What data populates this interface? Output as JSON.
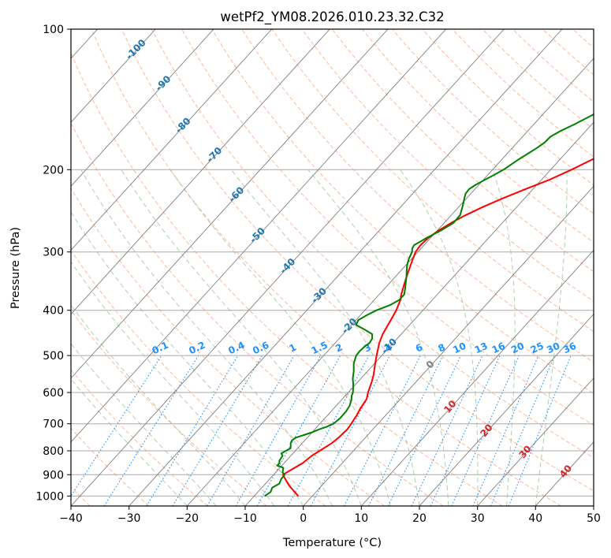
{
  "title": "wetPf2_YM08.2026.010.23.32.C32",
  "colors": {
    "temperature": "#ff0000",
    "dewpoint": "#008000",
    "grid": "#a9a9a9",
    "skew_isotherm": "#7f7f7f",
    "dry_adiabat": "#ffa07a",
    "moist_adiabat": "#8fbc8f",
    "mixing_ratio": "#1e90ff",
    "lifted_label": "#1f77b4",
    "wetbulb_label": "#d62728"
  },
  "chart_data": {
    "type": "line",
    "title": "wetPf2_YM08.2026.010.23.32.C32",
    "xlabel": "Temperature (°C)",
    "ylabel": "Pressure (hPa)",
    "xlim": [
      -40,
      50
    ],
    "ylim": [
      1050,
      100
    ],
    "y_scale": "log",
    "x_ticks": [
      -40,
      -30,
      -20,
      -10,
      0,
      10,
      20,
      30,
      40,
      50
    ],
    "x_tick_labels": [
      "−40",
      "−30",
      "−20",
      "−10",
      "0",
      "10",
      "20",
      "30",
      "40",
      "50"
    ],
    "y_ticks": [
      1000,
      900,
      800,
      700,
      600,
      500,
      400,
      300,
      200,
      100
    ],
    "y_tick_labels": [
      "1000",
      "900",
      "800",
      "700",
      "600",
      "500",
      "400",
      "300",
      "200",
      "100"
    ],
    "grid": true,
    "series": [
      {
        "key": "temperature",
        "points": [
          [
            1000,
            -2.4
          ],
          [
            975,
            -4.0
          ],
          [
            950,
            -5.6
          ],
          [
            925,
            -7.0
          ],
          [
            900,
            -8.4
          ],
          [
            880,
            -7.8
          ],
          [
            850,
            -6.8
          ],
          [
            820,
            -6.4
          ],
          [
            800,
            -5.8
          ],
          [
            770,
            -4.9
          ],
          [
            750,
            -4.6
          ],
          [
            720,
            -4.4
          ],
          [
            700,
            -4.6
          ],
          [
            670,
            -5.0
          ],
          [
            650,
            -5.4
          ],
          [
            620,
            -5.8
          ],
          [
            600,
            -6.6
          ],
          [
            570,
            -7.6
          ],
          [
            550,
            -8.4
          ],
          [
            520,
            -9.9
          ],
          [
            500,
            -10.9
          ],
          [
            470,
            -12.4
          ],
          [
            450,
            -13.2
          ],
          [
            420,
            -14.0
          ],
          [
            400,
            -14.6
          ],
          [
            380,
            -15.5
          ],
          [
            370,
            -16.2
          ],
          [
            350,
            -17.4
          ],
          [
            330,
            -18.6
          ],
          [
            310,
            -19.8
          ],
          [
            300,
            -20.4
          ],
          [
            290,
            -20.6
          ],
          [
            280,
            -20.4
          ],
          [
            270,
            -19.8
          ],
          [
            260,
            -18.8
          ],
          [
            250,
            -17.5
          ],
          [
            240,
            -15.8
          ],
          [
            230,
            -13.7
          ],
          [
            220,
            -11.3
          ],
          [
            210,
            -8.6
          ],
          [
            200,
            -6.4
          ],
          [
            190,
            -4.4
          ],
          [
            180,
            -2.2
          ],
          [
            175,
            -0.8
          ],
          [
            170,
            0.8
          ],
          [
            160,
            3.9
          ],
          [
            150,
            6.7
          ],
          [
            145,
            8.2
          ],
          [
            140,
            9.6
          ],
          [
            135,
            11.3
          ],
          [
            130,
            13.1
          ],
          [
            125,
            15.3
          ],
          [
            120,
            17.8
          ],
          [
            115,
            19.7
          ],
          [
            110,
            21.6
          ],
          [
            105,
            23.6
          ],
          [
            100,
            26.6
          ]
        ]
      },
      {
        "key": "dewpoint",
        "points": [
          [
            1000,
            -8.2
          ],
          [
            980,
            -7.8
          ],
          [
            960,
            -8.2
          ],
          [
            940,
            -7.6
          ],
          [
            920,
            -8.0
          ],
          [
            900,
            -8.1
          ],
          [
            890,
            -8.8
          ],
          [
            880,
            -9.1
          ],
          [
            870,
            -9.4
          ],
          [
            860,
            -10.8
          ],
          [
            850,
            -10.8
          ],
          [
            840,
            -11.2
          ],
          [
            820,
            -11.4
          ],
          [
            810,
            -12.0
          ],
          [
            790,
            -11.2
          ],
          [
            780,
            -11.6
          ],
          [
            770,
            -12.0
          ],
          [
            760,
            -12.2
          ],
          [
            750,
            -12.0
          ],
          [
            740,
            -11.0
          ],
          [
            730,
            -10.0
          ],
          [
            720,
            -9.3
          ],
          [
            710,
            -8.3
          ],
          [
            700,
            -7.7
          ],
          [
            690,
            -7.5
          ],
          [
            680,
            -7.4
          ],
          [
            660,
            -7.4
          ],
          [
            640,
            -7.7
          ],
          [
            620,
            -8.4
          ],
          [
            610,
            -8.9
          ],
          [
            600,
            -9.2
          ],
          [
            580,
            -10.2
          ],
          [
            560,
            -11.4
          ],
          [
            540,
            -12.4
          ],
          [
            520,
            -13.6
          ],
          [
            510,
            -14.0
          ],
          [
            500,
            -14.4
          ],
          [
            490,
            -14.5
          ],
          [
            480,
            -14.4
          ],
          [
            470,
            -14.1
          ],
          [
            460,
            -14.3
          ],
          [
            450,
            -15.0
          ],
          [
            440,
            -17.0
          ],
          [
            430,
            -19.2
          ],
          [
            420,
            -19.6
          ],
          [
            410,
            -18.9
          ],
          [
            400,
            -18.0
          ],
          [
            390,
            -16.5
          ],
          [
            380,
            -15.7
          ],
          [
            370,
            -15.7
          ],
          [
            360,
            -16.4
          ],
          [
            350,
            -17.2
          ],
          [
            340,
            -18.0
          ],
          [
            330,
            -18.9
          ],
          [
            320,
            -19.8
          ],
          [
            310,
            -20.5
          ],
          [
            300,
            -21.0
          ],
          [
            295,
            -21.5
          ],
          [
            290,
            -21.7
          ],
          [
            285,
            -21.2
          ],
          [
            280,
            -20.7
          ],
          [
            270,
            -19.4
          ],
          [
            260,
            -18.4
          ],
          [
            250,
            -18.5
          ],
          [
            240,
            -19.4
          ],
          [
            230,
            -20.4
          ],
          [
            225,
            -20.9
          ],
          [
            220,
            -21.0
          ],
          [
            215,
            -20.5
          ],
          [
            210,
            -19.7
          ],
          [
            205,
            -18.9
          ],
          [
            200,
            -18.1
          ],
          [
            190,
            -17.1
          ],
          [
            180,
            -15.8
          ],
          [
            175,
            -15.3
          ],
          [
            170,
            -15.2
          ],
          [
            165,
            -14.3
          ],
          [
            160,
            -13.0
          ],
          [
            150,
            -10.7
          ],
          [
            140,
            -8.1
          ],
          [
            130,
            -5.2
          ],
          [
            120,
            -2.1
          ],
          [
            110,
            1.2
          ],
          [
            100,
            4.4
          ]
        ]
      }
    ],
    "mixing_ratio_labels": [
      "0.1",
      "0.2",
      "0.4",
      "0.6",
      "1",
      "1.5",
      "2",
      "3",
      "4",
      "6",
      "8",
      "10",
      "13",
      "16",
      "20",
      "25",
      "30",
      "36"
    ],
    "lifted_labels": [
      "-100",
      "-90",
      "-80",
      "-70",
      "-60",
      "-50",
      "-40",
      "-30",
      "-20",
      "-10"
    ],
    "wetbulb_labels": [
      "0",
      "10",
      "20",
      "30",
      "40"
    ]
  }
}
